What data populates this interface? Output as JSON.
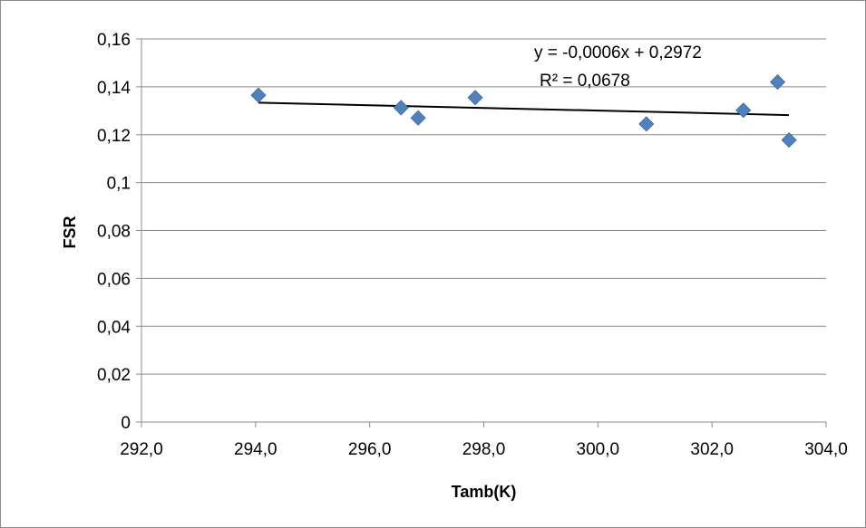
{
  "chart_data": {
    "type": "scatter",
    "title": "",
    "xlabel": "Tamb(K)",
    "ylabel": "FSR",
    "xlim": [
      292.0,
      304.0
    ],
    "ylim": [
      0,
      0.16
    ],
    "x_ticks": [
      "292,0",
      "294,0",
      "296,0",
      "298,0",
      "300,0",
      "302,0",
      "304,0"
    ],
    "x_tick_values": [
      292,
      294,
      296,
      298,
      300,
      302,
      304
    ],
    "y_ticks": [
      "0",
      "0,02",
      "0,04",
      "0,06",
      "0,08",
      "0,1",
      "0,12",
      "0,14",
      "0,16"
    ],
    "y_tick_values": [
      0,
      0.02,
      0.04,
      0.06,
      0.08,
      0.1,
      0.12,
      0.14,
      0.16
    ],
    "grid": "horizontal",
    "legend": "none",
    "marker": "diamond",
    "marker_color": "#4f81bd",
    "series": [
      {
        "points": [
          {
            "x": 294.05,
            "y": 0.1365
          },
          {
            "x": 296.55,
            "y": 0.1313
          },
          {
            "x": 296.85,
            "y": 0.127
          },
          {
            "x": 297.85,
            "y": 0.1355
          },
          {
            "x": 300.85,
            "y": 0.1245
          },
          {
            "x": 302.55,
            "y": 0.1302
          },
          {
            "x": 303.15,
            "y": 0.142
          },
          {
            "x": 303.35,
            "y": 0.1178
          }
        ]
      }
    ],
    "trendline": {
      "type": "linear",
      "x_range": [
        294.05,
        303.35
      ],
      "y_start": 0.1334,
      "y_end": 0.1282,
      "color": "#000000",
      "equation": "y = -0,0006x + 0,2972",
      "r_squared": "R² = 0,0678"
    }
  }
}
